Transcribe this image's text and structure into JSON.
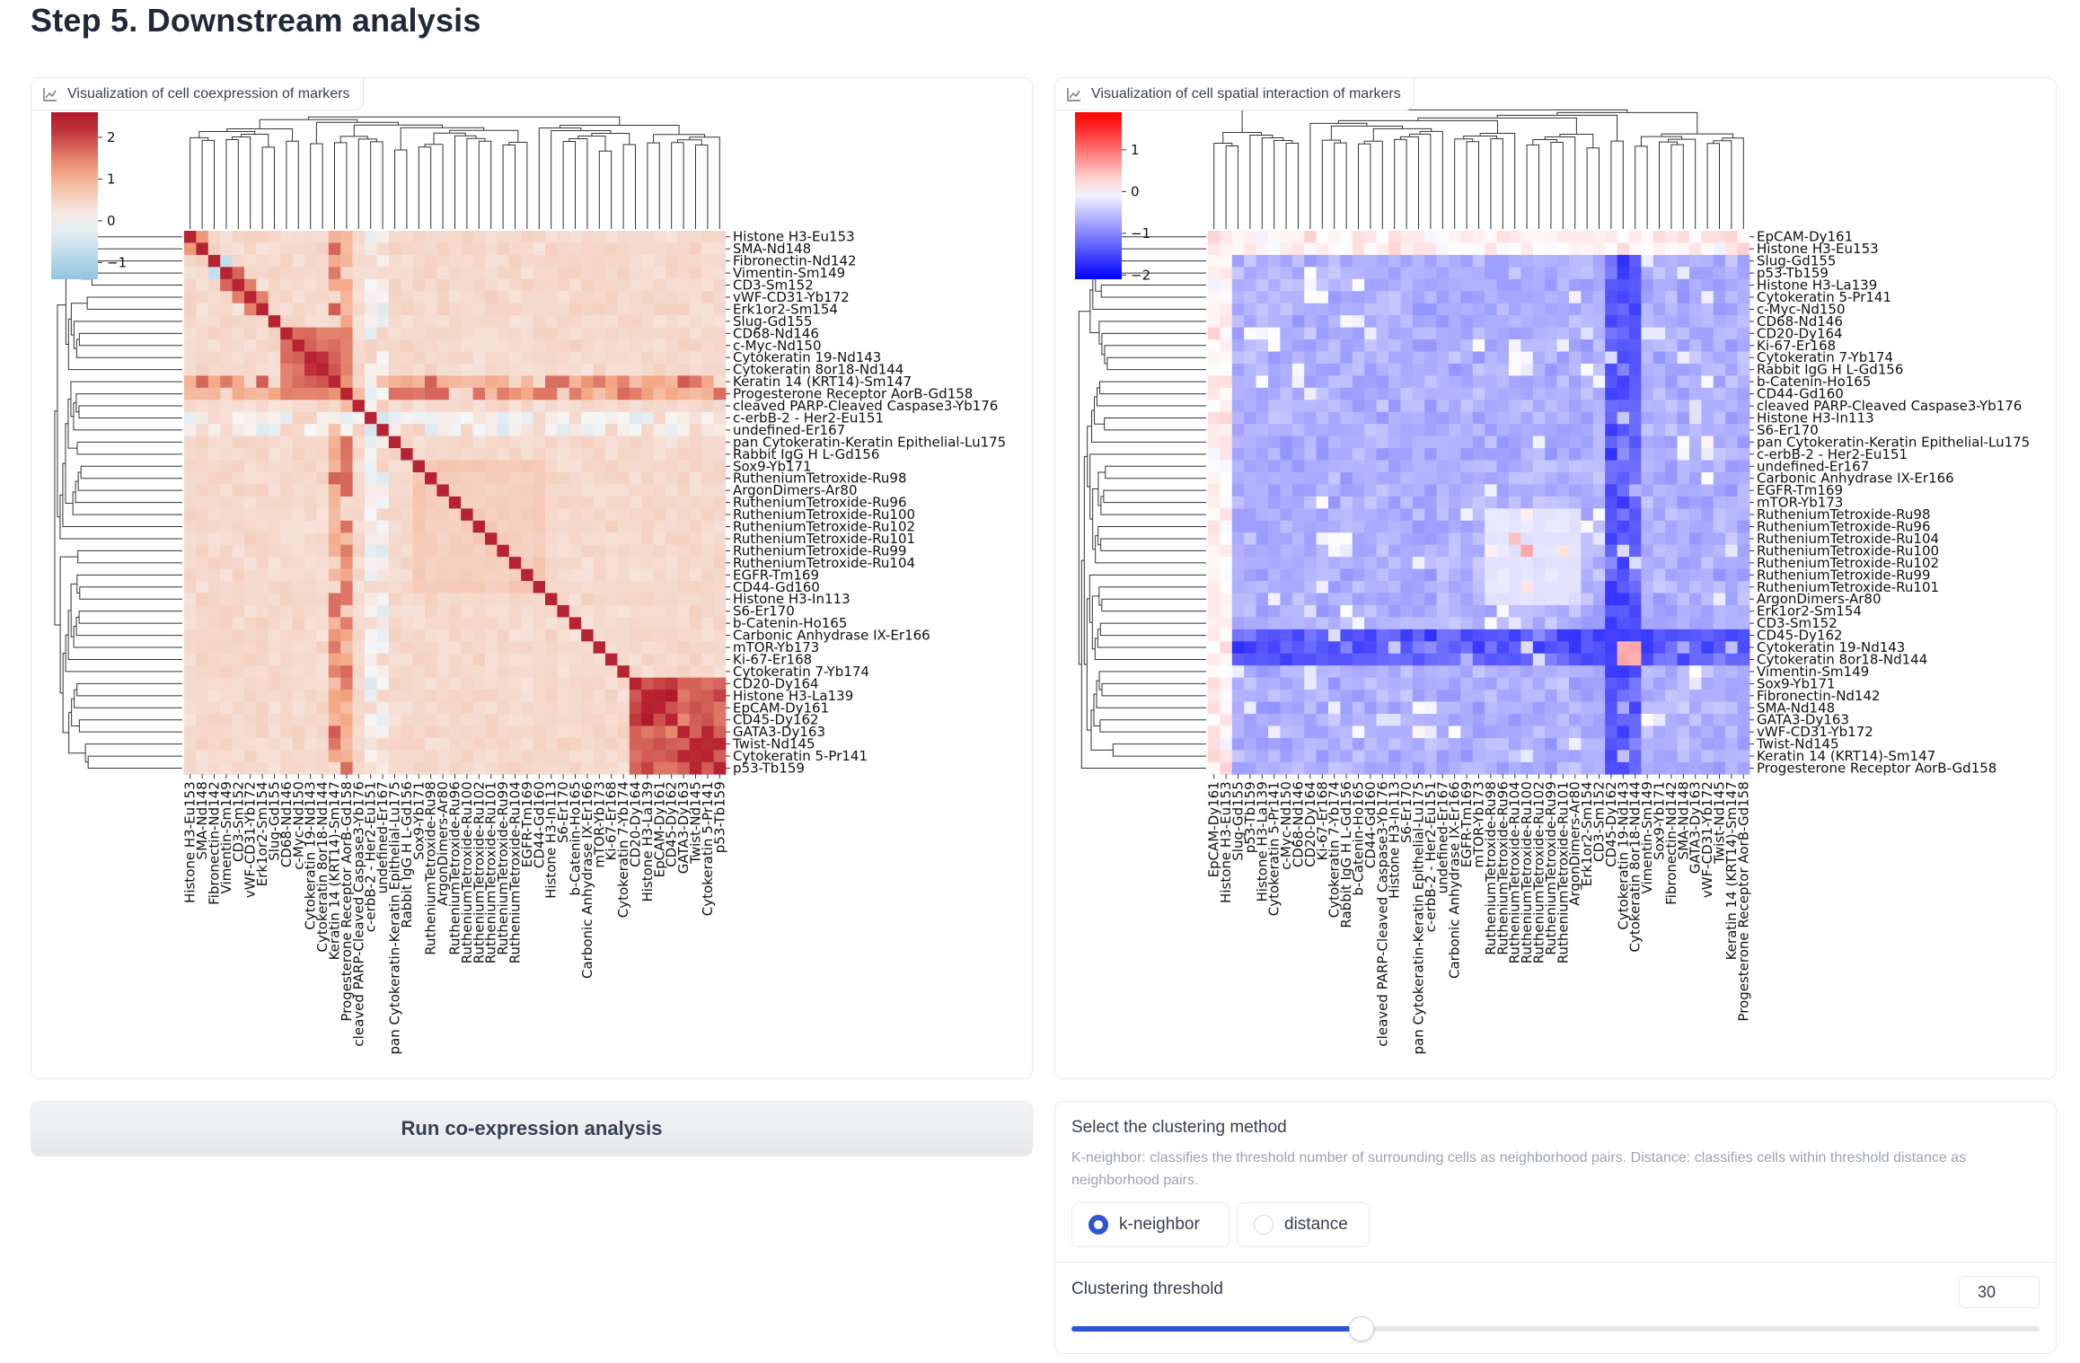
{
  "page": {
    "title": "Step 5. Downstream analysis"
  },
  "coexpression": {
    "title": "Visualization of cell coexpression of markers",
    "icon": "chart-icon",
    "run_label": "Run co-expression analysis",
    "cmap": "RdBu_r",
    "colorbar_ticks": [
      "2",
      "1",
      "0",
      "−1"
    ],
    "colorbar_range": [
      -1.4,
      2.6
    ],
    "row_labels": [
      "Histone H3-Eu153",
      "SMA-Nd148",
      "Fibronectin-Nd142",
      "Vimentin-Sm149",
      "CD3-Sm152",
      "vWF-CD31-Yb172",
      "Erk1or2-Sm154",
      "Slug-Gd155",
      "CD68-Nd146",
      "c-Myc-Nd150",
      "Cytokeratin 19-Nd143",
      "Cytokeratin 8or18-Nd144",
      "Keratin 14 (KRT14)-Sm147",
      "Progesterone Receptor AorB-Gd158",
      "cleaved PARP-Cleaved Caspase3-Yb176",
      "c-erbB-2 - Her2-Eu151",
      "undefined-Er167",
      "pan Cytokeratin-Keratin Epithelial-Lu175",
      "Rabbit IgG H L-Gd156",
      "Sox9-Yb171",
      "RutheniumTetroxide-Ru98",
      "ArgonDimers-Ar80",
      "RutheniumTetroxide-Ru96",
      "RutheniumTetroxide-Ru100",
      "RutheniumTetroxide-Ru102",
      "RutheniumTetroxide-Ru101",
      "RutheniumTetroxide-Ru99",
      "RutheniumTetroxide-Ru104",
      "EGFR-Tm169",
      "CD44-Gd160",
      "Histone H3-In113",
      "S6-Er170",
      "b-Catenin-Ho165",
      "Carbonic Anhydrase IX-Er166",
      "mTOR-Yb173",
      "Ki-67-Er168",
      "Cytokeratin 7-Yb174",
      "CD20-Dy164",
      "Histone H3-La139",
      "EpCAM-Dy161",
      "CD45-Dy162",
      "GATA3-Dy163",
      "Twist-Nd145",
      "Cytokeratin 5-Pr141",
      "p53-Tb159"
    ],
    "blocks": [
      [
        8,
        13,
        1.7
      ],
      [
        10,
        12,
        2.0
      ],
      [
        37,
        44,
        1.9
      ],
      [
        38,
        40,
        2.3
      ],
      [
        41,
        44,
        2.1
      ],
      [
        19,
        29,
        0.7
      ],
      [
        20,
        28,
        0.6
      ],
      [
        2,
        3,
        -0.8
      ],
      [
        15,
        16,
        -0.6
      ],
      [
        0,
        1,
        1.3
      ],
      [
        3,
        4,
        2.0
      ],
      [
        4,
        5,
        1.6
      ],
      [
        5,
        6,
        1.5
      ]
    ]
  },
  "spatial": {
    "title": "Visualization of cell spatial interaction of markers",
    "icon": "chart-icon",
    "cmap": "bwr",
    "colorbar_ticks": [
      "1",
      "0",
      "−1",
      "−2"
    ],
    "colorbar_range": [
      -2.1,
      1.9
    ],
    "row_labels": [
      "EpCAM-Dy161",
      "Histone H3-Eu153",
      "Slug-Gd155",
      "p53-Tb159",
      "Histone H3-La139",
      "Cytokeratin 5-Pr141",
      "c-Myc-Nd150",
      "CD68-Nd146",
      "CD20-Dy164",
      "Ki-67-Er168",
      "Cytokeratin 7-Yb174",
      "Rabbit IgG H L-Gd156",
      "b-Catenin-Ho165",
      "CD44-Gd160",
      "cleaved PARP-Cleaved Caspase3-Yb176",
      "Histone H3-In113",
      "S6-Er170",
      "pan Cytokeratin-Keratin Epithelial-Lu175",
      "c-erbB-2 - Her2-Eu151",
      "undefined-Er167",
      "Carbonic Anhydrase IX-Er166",
      "EGFR-Tm169",
      "mTOR-Yb173",
      "RutheniumTetroxide-Ru98",
      "RutheniumTetroxide-Ru96",
      "RutheniumTetroxide-Ru104",
      "RutheniumTetroxide-Ru100",
      "RutheniumTetroxide-Ru102",
      "RutheniumTetroxide-Ru99",
      "RutheniumTetroxide-Ru101",
      "ArgonDimers-Ar80",
      "Erk1or2-Sm154",
      "CD3-Sm152",
      "CD45-Dy162",
      "Cytokeratin 19-Nd143",
      "Cytokeratin 8or18-Nd144",
      "Vimentin-Sm149",
      "Sox9-Yb171",
      "Fibronectin-Nd142",
      "SMA-Nd148",
      "GATA3-Dy163",
      "vWF-CD31-Yb172",
      "Twist-Nd145",
      "Keratin 14 (KRT14)-Sm147",
      "Progesterone Receptor AorB-Gd158"
    ]
  },
  "clustering": {
    "method_label": "Select the clustering method",
    "method_info": "K-neighbor: classifies the threshold number of surrounding cells as neighborhood pairs. Distance: classifies cells within threshold distance as neighborhood pairs.",
    "options": [
      "k-neighbor",
      "distance"
    ],
    "selected": "k-neighbor",
    "threshold_label": "Clustering threshold",
    "threshold_value": "30",
    "threshold_fraction": 0.3
  }
}
